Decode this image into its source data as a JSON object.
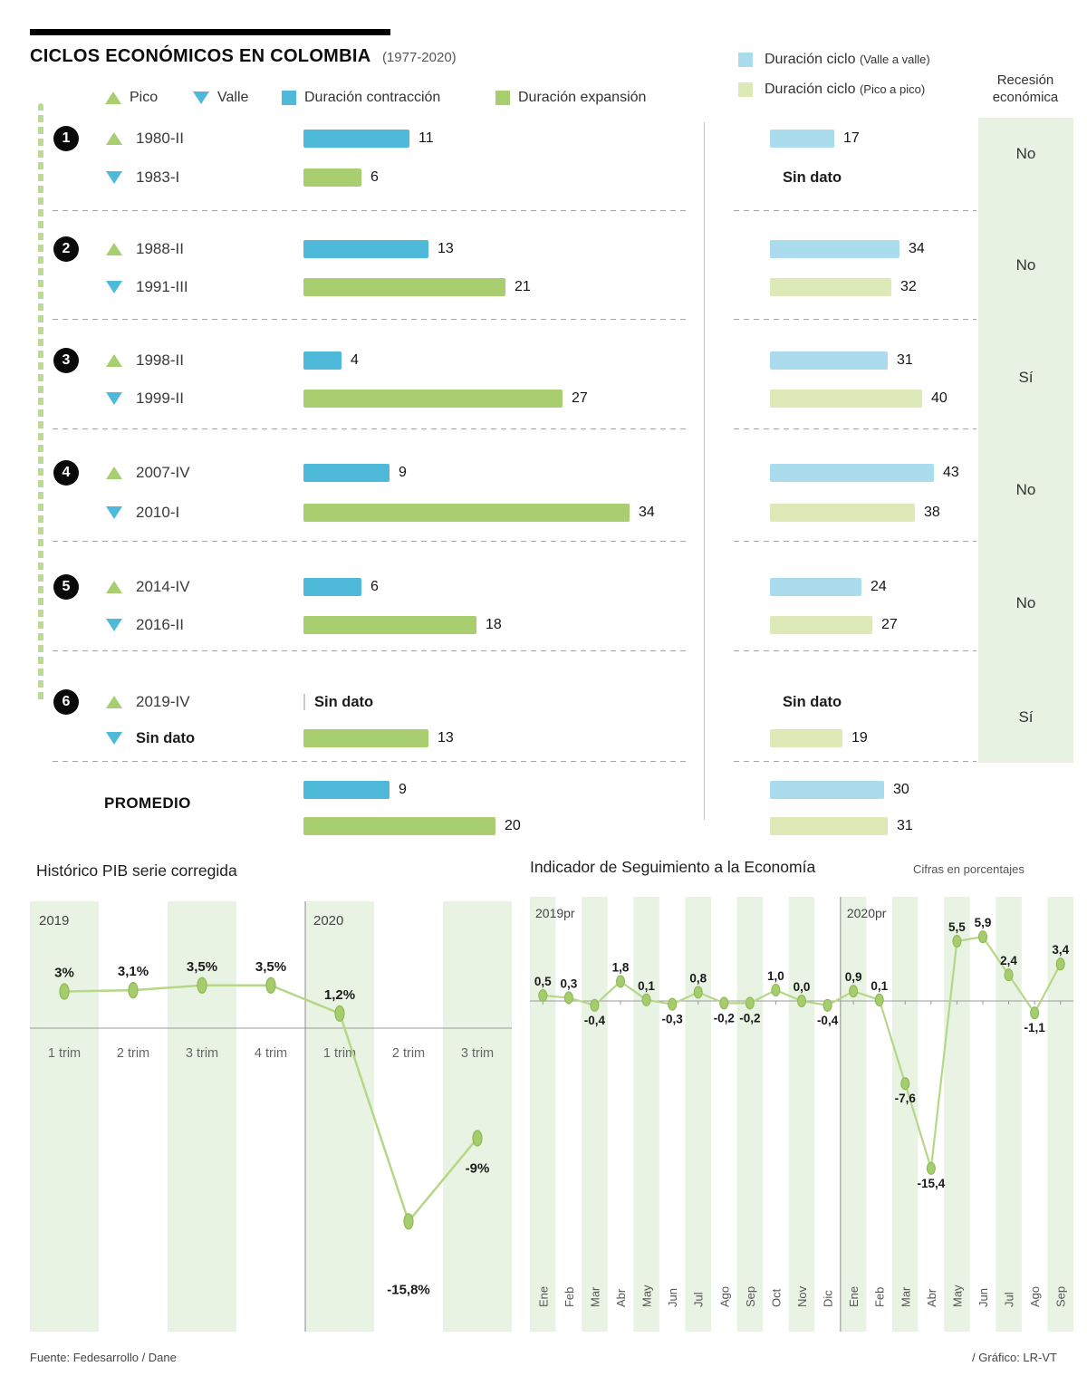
{
  "header": {
    "title": "CICLOS ECONÓMICOS EN COLOMBIA",
    "period": "(1977-2020)"
  },
  "legend": {
    "pico": "Pico",
    "valle": "Valle",
    "contraccion": "Duración contracción",
    "expansion": "Duración expansión",
    "ciclo_vv_main": "Duración ciclo",
    "ciclo_vv_paren": "(Valle a valle)",
    "ciclo_pp_main": "Duración ciclo",
    "ciclo_pp_paren": "(Pico a pico)",
    "recesion": "Recesión económica"
  },
  "colors": {
    "contraction": "#4fb9d9",
    "expansion": "#a9ce70",
    "cycle_vv": "#abdcee",
    "cycle_pp": "#dde9b6",
    "recession_band": "#e8f2e2",
    "chart_band": "#e9f3e3",
    "line": "#b5d787",
    "marker": "#a6cd6d",
    "marker_stroke": "#8db953"
  },
  "sin_dato": "Sin dato",
  "cycles": [
    {
      "num": "1",
      "peak": "1980-II",
      "valley": "1983-I",
      "contraction": 11,
      "expansion": 6,
      "cycle_vv": 17,
      "cycle_pp": null,
      "recession": "No"
    },
    {
      "num": "2",
      "peak": "1988-II",
      "valley": "1991-III",
      "contraction": 13,
      "expansion": 21,
      "cycle_vv": 34,
      "cycle_pp": 32,
      "recession": "No"
    },
    {
      "num": "3",
      "peak": "1998-II",
      "valley": "1999-II",
      "contraction": 4,
      "expansion": 27,
      "cycle_vv": 31,
      "cycle_pp": 40,
      "recession": "Sí"
    },
    {
      "num": "4",
      "peak": "2007-IV",
      "valley": "2010-I",
      "contraction": 9,
      "expansion": 34,
      "cycle_vv": 43,
      "cycle_pp": 38,
      "recession": "No"
    },
    {
      "num": "5",
      "peak": "2014-IV",
      "valley": "2016-II",
      "contraction": 6,
      "expansion": 18,
      "cycle_vv": 24,
      "cycle_pp": 27,
      "recession": "No"
    },
    {
      "num": "6",
      "peak": "2019-IV",
      "valley": null,
      "contraction": null,
      "expansion": 13,
      "cycle_vv": null,
      "cycle_pp": 19,
      "recession": "Sí"
    }
  ],
  "promedio": {
    "label": "PROMEDIO",
    "contraction": 9,
    "expansion": 20,
    "cycle_vv": 30,
    "cycle_pp": 31
  },
  "chart_data": [
    {
      "type": "line",
      "title": "Histórico PIB serie corregida",
      "year_labels": [
        "2019",
        "2020"
      ],
      "split_index": 4,
      "categories": [
        "1 trim",
        "2 trim",
        "3 trim",
        "4 trim",
        "1 trim",
        "2 trim",
        "3 trim"
      ],
      "values": [
        3,
        3.1,
        3.5,
        3.5,
        1.2,
        -15.8,
        -9
      ],
      "labels": [
        "3%",
        "3,1%",
        "3,5%",
        "3,5%",
        "1,2%",
        "-15,8%",
        "-9%"
      ],
      "ylim": [
        -17,
        5
      ]
    },
    {
      "type": "line",
      "title": "Indicador de Seguimiento a la Economía",
      "subtitle": "Cifras en porcentajes",
      "year_labels": [
        "2019pr",
        "2020pr"
      ],
      "split_index": 12,
      "categories": [
        "Ene",
        "Feb",
        "Mar",
        "Abr",
        "May",
        "Jun",
        "Jul",
        "Ago",
        "Sep",
        "Oct",
        "Nov",
        "Dic",
        "Ene",
        "Feb",
        "Mar",
        "Abr",
        "May",
        "Jun",
        "Jul",
        "Ago",
        "Sep"
      ],
      "values": [
        0.5,
        0.3,
        -0.4,
        1.8,
        0.1,
        -0.3,
        0.8,
        -0.2,
        -0.2,
        1.0,
        0.0,
        -0.4,
        0.9,
        0.1,
        -7.6,
        -15.4,
        5.5,
        5.9,
        2.4,
        -1.1,
        3.4
      ],
      "labels": [
        "0,5",
        "0,3",
        "-0,4",
        "1,8",
        "0,1",
        "-0,3",
        "0,8",
        "-0,2",
        "-0,2",
        "1,0",
        "0,0",
        "-0,4",
        "0,9",
        "0,1",
        "-7,6",
        "-15,4",
        "5,5",
        "5,9",
        "2,4",
        "-1,1",
        "3,4"
      ],
      "ylim": [
        -17,
        7
      ]
    }
  ],
  "footer": {
    "source": "Fuente: Fedesarrollo / Dane",
    "credit": "/ Gráfico: LR-VT"
  }
}
